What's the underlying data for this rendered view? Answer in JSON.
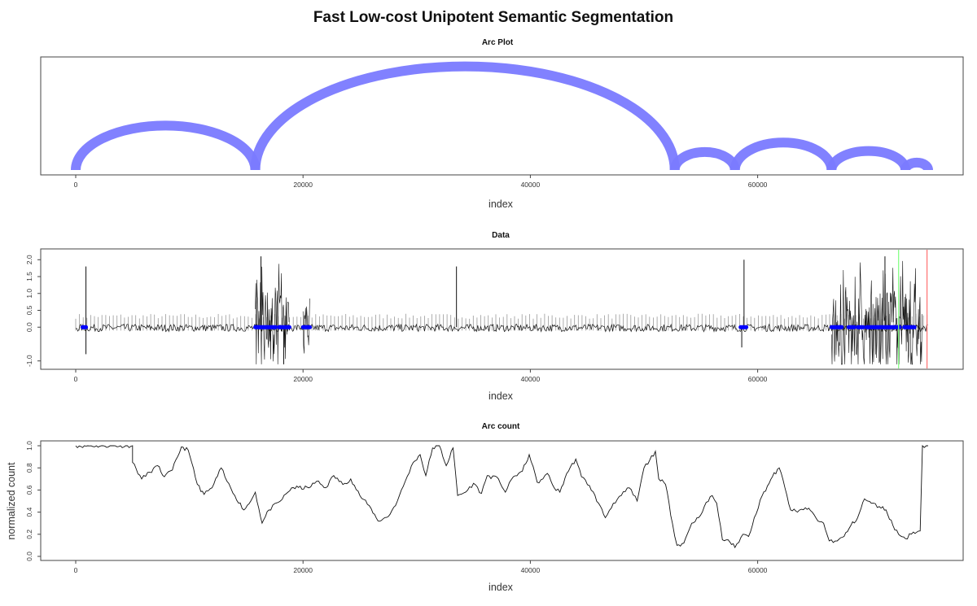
{
  "title": "Fast Low-cost Unipotent Semantic Segmentation",
  "chart_data": [
    {
      "type": "arc",
      "title": "Arc Plot",
      "xlabel": "index",
      "ylabel": "",
      "xlim": [
        0,
        75000
      ],
      "xticks": [
        0,
        20000,
        40000,
        60000
      ],
      "arc_color": "#7a7aff",
      "arcs": [
        {
          "from": 0,
          "to": 15800,
          "height": 0.42
        },
        {
          "from": 15800,
          "to": 52700,
          "height": 0.98
        },
        {
          "from": 52700,
          "to": 58000,
          "height": 0.17
        },
        {
          "from": 58000,
          "to": 66500,
          "height": 0.26
        },
        {
          "from": 66500,
          "to": 73000,
          "height": 0.18
        },
        {
          "from": 73000,
          "to": 75000,
          "height": 0.07
        }
      ]
    },
    {
      "type": "line",
      "title": "Data",
      "xlabel": "index",
      "ylabel": "",
      "xlim": [
        0,
        75000
      ],
      "ylim": [
        -1.2,
        2.2
      ],
      "xticks": [
        0,
        20000,
        40000,
        60000
      ],
      "yticks": [
        -1.0,
        0.0,
        0.5,
        1.0,
        1.5,
        2.0
      ],
      "ytick_labels": [
        "-1.0",
        "0.0",
        "0.5",
        "1.0",
        "1.5",
        "2.0"
      ],
      "line_color": "#111111",
      "grey_color": "#9a9a9a",
      "marker_color": "#0000ff",
      "vlines": [
        {
          "x": 72400,
          "color": "#7cff7c"
        },
        {
          "x": 74900,
          "color": "#ff7070"
        }
      ],
      "bursts": [
        {
          "from": 15800,
          "to": 18800,
          "amp": 1.9
        },
        {
          "from": 20000,
          "to": 20600,
          "amp": 1.2
        },
        {
          "from": 66500,
          "to": 74500,
          "amp": 2.0
        }
      ],
      "spikes": [
        {
          "x": 900,
          "y": 1.8
        },
        {
          "x": 900,
          "y": -0.8
        },
        {
          "x": 33500,
          "y": 1.8
        },
        {
          "x": 58800,
          "y": 2.0
        },
        {
          "x": 58600,
          "y": -0.6
        },
        {
          "x": 16300,
          "y": 2.1
        },
        {
          "x": 18300,
          "y": -1.1
        },
        {
          "x": 71200,
          "y": 2.1
        }
      ],
      "markers": [
        {
          "from": 600,
          "to": 900
        },
        {
          "from": 15800,
          "to": 17600
        },
        {
          "from": 17900,
          "to": 18800
        },
        {
          "from": 20000,
          "to": 20600
        },
        {
          "from": 58500,
          "to": 59000
        },
        {
          "from": 66500,
          "to": 67400
        },
        {
          "from": 68000,
          "to": 68500
        },
        {
          "from": 68800,
          "to": 69300
        },
        {
          "from": 69600,
          "to": 72500
        },
        {
          "from": 72900,
          "to": 73800
        }
      ]
    },
    {
      "type": "line",
      "title": "Arc count",
      "xlabel": "index",
      "ylabel": "normalized count",
      "xlim": [
        0,
        75000
      ],
      "ylim": [
        0,
        1
      ],
      "xticks": [
        0,
        20000,
        40000,
        60000
      ],
      "yticks": [
        0.0,
        0.2,
        0.4,
        0.6,
        0.8,
        1.0
      ],
      "ytick_labels": [
        "0.0",
        "0.2",
        "0.4",
        "0.6",
        "0.8",
        "1.0"
      ],
      "line_color": "#111111",
      "points": [
        [
          0,
          1.0
        ],
        [
          5000,
          1.0
        ],
        [
          5000,
          0.85
        ],
        [
          5800,
          0.7
        ],
        [
          6500,
          0.76
        ],
        [
          7200,
          0.82
        ],
        [
          7800,
          0.72
        ],
        [
          8500,
          0.78
        ],
        [
          9300,
          0.99
        ],
        [
          9900,
          0.96
        ],
        [
          10200,
          0.85
        ],
        [
          10700,
          0.65
        ],
        [
          11300,
          0.56
        ],
        [
          12000,
          0.62
        ],
        [
          12800,
          0.8
        ],
        [
          13300,
          0.68
        ],
        [
          14000,
          0.55
        ],
        [
          14800,
          0.42
        ],
        [
          15400,
          0.5
        ],
        [
          15800,
          0.58
        ],
        [
          16400,
          0.3
        ],
        [
          17000,
          0.42
        ],
        [
          18000,
          0.5
        ],
        [
          19000,
          0.62
        ],
        [
          20500,
          0.62
        ],
        [
          21200,
          0.68
        ],
        [
          22000,
          0.62
        ],
        [
          22700,
          0.73
        ],
        [
          23500,
          0.65
        ],
        [
          24200,
          0.7
        ],
        [
          25000,
          0.55
        ],
        [
          26000,
          0.43
        ],
        [
          26600,
          0.32
        ],
        [
          27500,
          0.36
        ],
        [
          28300,
          0.5
        ],
        [
          29000,
          0.68
        ],
        [
          29700,
          0.85
        ],
        [
          30300,
          0.92
        ],
        [
          30800,
          0.73
        ],
        [
          31400,
          0.98
        ],
        [
          32000,
          1.0
        ],
        [
          32600,
          0.82
        ],
        [
          33200,
          0.98
        ],
        [
          33600,
          0.55
        ],
        [
          34300,
          0.58
        ],
        [
          35000,
          0.66
        ],
        [
          35700,
          0.57
        ],
        [
          36200,
          0.73
        ],
        [
          37200,
          0.7
        ],
        [
          37800,
          0.58
        ],
        [
          38500,
          0.72
        ],
        [
          39300,
          0.77
        ],
        [
          39900,
          0.92
        ],
        [
          40600,
          0.67
        ],
        [
          41100,
          0.7
        ],
        [
          41500,
          0.75
        ],
        [
          42100,
          0.62
        ],
        [
          42600,
          0.58
        ],
        [
          43200,
          0.75
        ],
        [
          44000,
          0.88
        ],
        [
          44500,
          0.72
        ],
        [
          45200,
          0.64
        ],
        [
          46000,
          0.48
        ],
        [
          46600,
          0.35
        ],
        [
          47300,
          0.48
        ],
        [
          48000,
          0.55
        ],
        [
          48700,
          0.62
        ],
        [
          49400,
          0.5
        ],
        [
          50000,
          0.8
        ],
        [
          50500,
          0.87
        ],
        [
          51000,
          0.95
        ],
        [
          51300,
          0.7
        ],
        [
          51900,
          0.65
        ],
        [
          52500,
          0.3
        ],
        [
          52900,
          0.1
        ],
        [
          53500,
          0.12
        ],
        [
          54200,
          0.3
        ],
        [
          54800,
          0.35
        ],
        [
          55300,
          0.45
        ],
        [
          56000,
          0.55
        ],
        [
          56400,
          0.48
        ],
        [
          56900,
          0.15
        ],
        [
          57400,
          0.15
        ],
        [
          58000,
          0.08
        ],
        [
          58700,
          0.2
        ],
        [
          59200,
          0.18
        ],
        [
          59700,
          0.35
        ],
        [
          60400,
          0.55
        ],
        [
          61300,
          0.72
        ],
        [
          61900,
          0.8
        ],
        [
          62400,
          0.62
        ],
        [
          62900,
          0.42
        ],
        [
          63500,
          0.4
        ],
        [
          64200,
          0.44
        ],
        [
          64800,
          0.4
        ],
        [
          65300,
          0.32
        ],
        [
          65800,
          0.3
        ],
        [
          66300,
          0.14
        ],
        [
          67000,
          0.14
        ],
        [
          67600,
          0.18
        ],
        [
          68200,
          0.28
        ],
        [
          68800,
          0.35
        ],
        [
          69400,
          0.52
        ],
        [
          70000,
          0.48
        ],
        [
          70700,
          0.45
        ],
        [
          71300,
          0.42
        ],
        [
          71900,
          0.28
        ],
        [
          72400,
          0.2
        ],
        [
          73000,
          0.16
        ],
        [
          73700,
          0.22
        ],
        [
          74300,
          0.23
        ],
        [
          74500,
          1.0
        ],
        [
          75000,
          1.0
        ]
      ]
    }
  ]
}
